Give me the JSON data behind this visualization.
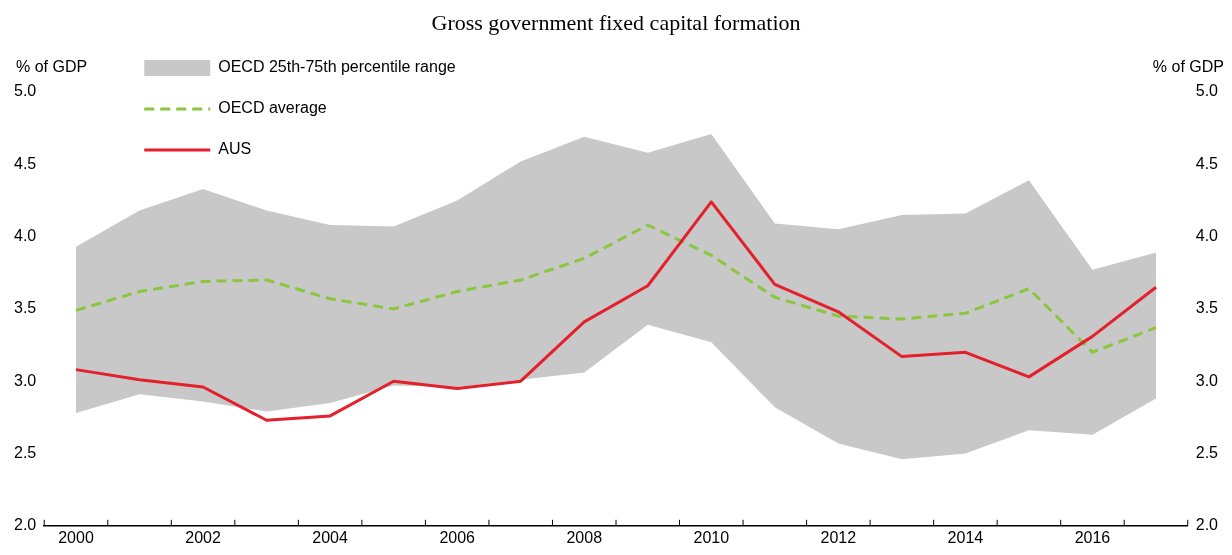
{
  "chart_data": {
    "type": "line",
    "title": "Gross government fixed capital formation",
    "ylabel": "% of GDP",
    "y2label": "% of GDP",
    "x": [
      2000,
      2001,
      2002,
      2003,
      2004,
      2005,
      2006,
      2007,
      2008,
      2009,
      2010,
      2011,
      2012,
      2013,
      2014,
      2015,
      2016,
      2017
    ],
    "xlim": [
      1999.5,
      2017.5
    ],
    "xticks": [
      2000,
      2002,
      2004,
      2006,
      2008,
      2010,
      2012,
      2014,
      2016
    ],
    "ylim": [
      2.0,
      5.0
    ],
    "yticks": [
      {
        "value": 2,
        "label": "2.0"
      },
      {
        "value": 2.5,
        "label": "2.5"
      },
      {
        "value": 3,
        "label": "3.0"
      },
      {
        "value": 3.5,
        "label": "3.5"
      },
      {
        "value": 4,
        "label": "4.0"
      },
      {
        "value": 4.5,
        "label": "4.5"
      },
      {
        "value": 5,
        "label": "5.0"
      }
    ],
    "y2lim": [
      2.0,
      5.0
    ],
    "y2ticks": [
      {
        "value": 2,
        "label": "2.0"
      },
      {
        "value": 2.5,
        "label": "2.5"
      },
      {
        "value": 3,
        "label": "3.0"
      },
      {
        "value": 3.5,
        "label": "3.5"
      },
      {
        "value": 4,
        "label": "4.0"
      },
      {
        "value": 4.5,
        "label": "4.5"
      },
      {
        "value": 5,
        "label": "5.0"
      }
    ],
    "grid": false,
    "legend": "top left",
    "marker": "none",
    "series": [
      {
        "name": "OECD 25th-75th percentile range",
        "type": "area",
        "color": "#c8c8c8",
        "values": [
          null,
          null,
          null,
          null,
          null,
          null,
          null,
          null,
          null,
          null,
          null,
          null,
          null,
          null,
          null,
          null,
          null,
          null
        ],
        "upper": [
          3.93,
          4.18,
          4.33,
          4.18,
          4.08,
          4.07,
          4.25,
          4.52,
          4.69,
          4.58,
          4.71,
          4.09,
          4.05,
          4.15,
          4.16,
          4.39,
          3.77,
          3.89
        ],
        "lower": [
          2.78,
          2.91,
          2.86,
          2.79,
          2.85,
          2.97,
          2.96,
          3.01,
          3.06,
          3.39,
          3.27,
          2.82,
          2.57,
          2.46,
          2.5,
          2.66,
          2.63,
          2.88
        ]
      },
      {
        "name": "OECD average",
        "type": "line",
        "color": "#8cc63f",
        "line_style": "dashed",
        "values": [
          3.49,
          3.62,
          3.69,
          3.7,
          3.57,
          3.5,
          3.62,
          3.7,
          3.85,
          4.08,
          3.87,
          3.58,
          3.45,
          3.43,
          3.47,
          3.64,
          3.2,
          3.37
        ]
      },
      {
        "name": "AUS",
        "type": "line",
        "color": "#e3202b",
        "line_style": "solid",
        "values": [
          3.08,
          3.01,
          2.96,
          2.73,
          2.76,
          3.0,
          2.95,
          3.0,
          3.41,
          3.66,
          4.24,
          3.67,
          3.48,
          3.17,
          3.2,
          3.03,
          3.31,
          3.65
        ]
      }
    ]
  }
}
